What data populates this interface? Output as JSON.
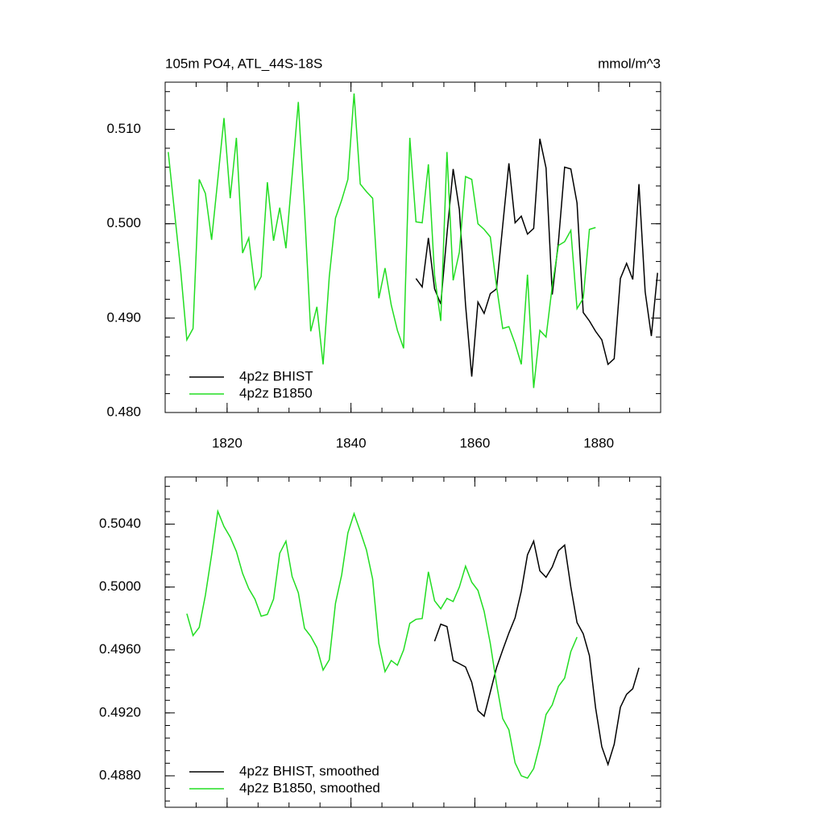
{
  "chart_data": [
    {
      "type": "line",
      "title": "105m PO4, ATL_44S-18S",
      "units": "mmol/m^3",
      "x": [
        1810.5,
        1811.5,
        1812.5,
        1813.5,
        1814.5,
        1815.5,
        1816.5,
        1817.5,
        1818.5,
        1819.5,
        1820.5,
        1821.5,
        1822.5,
        1823.5,
        1824.5,
        1825.5,
        1826.5,
        1827.5,
        1828.5,
        1829.5,
        1830.5,
        1831.5,
        1832.5,
        1833.5,
        1834.5,
        1835.5,
        1836.5,
        1837.5,
        1838.5,
        1839.5,
        1840.5,
        1841.5,
        1842.5,
        1843.5,
        1844.5,
        1845.5,
        1846.5,
        1847.5,
        1848.5,
        1849.5,
        1850.5,
        1851.5,
        1852.5,
        1853.5,
        1854.5,
        1855.5,
        1856.5,
        1857.5,
        1858.5,
        1859.5,
        1860.5,
        1861.5,
        1862.5,
        1863.5,
        1864.5,
        1865.5,
        1866.5,
        1867.5,
        1868.5,
        1869.5,
        1870.5,
        1871.5,
        1872.5,
        1873.5,
        1874.5,
        1875.5,
        1876.5,
        1877.5,
        1878.5,
        1879.5,
        1880.5,
        1881.5,
        1882.5,
        1883.5,
        1884.5,
        1885.5,
        1886.5,
        1887.5,
        1888.5,
        1889.5
      ],
      "series": [
        {
          "name": "4p2z BHIST",
          "color": "#000000",
          "values": [
            null,
            null,
            null,
            null,
            null,
            null,
            null,
            null,
            null,
            null,
            null,
            null,
            null,
            null,
            null,
            null,
            null,
            null,
            null,
            null,
            null,
            null,
            null,
            null,
            null,
            null,
            null,
            null,
            null,
            null,
            null,
            null,
            null,
            null,
            null,
            null,
            null,
            null,
            null,
            null,
            0.4942,
            0.4933,
            0.4985,
            0.4931,
            0.4915,
            0.4989,
            0.5058,
            0.5015,
            0.4914,
            0.4838,
            0.4917,
            0.4905,
            0.4926,
            0.4931,
            0.4998,
            0.5064,
            0.5001,
            0.5008,
            0.4989,
            0.4995,
            0.509,
            0.5059,
            0.4925,
            0.4981,
            0.506,
            0.5058,
            0.5022,
            0.4906,
            0.4897,
            0.4886,
            0.4877,
            0.4851,
            0.4857,
            0.4942,
            0.4958,
            0.4941,
            0.5042,
            0.4928,
            0.4881,
            0.4948
          ]
        },
        {
          "name": "4p2z B1850",
          "color": "#22dd22",
          "values": [
            0.5076,
            0.5013,
            0.4951,
            0.4877,
            0.4889,
            0.5047,
            0.5032,
            0.4983,
            0.5047,
            0.5112,
            0.5027,
            0.5091,
            0.4969,
            0.4985,
            0.4931,
            0.4944,
            0.5044,
            0.4982,
            0.5017,
            0.4974,
            0.5051,
            0.5129,
            0.5015,
            0.4886,
            0.4912,
            0.4851,
            0.4944,
            0.5006,
            0.5025,
            0.5047,
            0.5138,
            0.5042,
            0.5034,
            0.5027,
            0.4921,
            0.4953,
            0.4914,
            0.4887,
            0.4868,
            0.5091,
            0.5002,
            0.5001,
            0.5063,
            0.4945,
            0.4897,
            0.5076,
            0.494,
            0.497,
            0.505,
            0.5047,
            0.5,
            0.4994,
            0.4986,
            0.4934,
            0.4889,
            0.4891,
            0.4873,
            0.4851,
            0.4946,
            0.4826,
            0.4887,
            0.488,
            0.4934,
            0.4977,
            0.4981,
            0.4993,
            0.491,
            0.4921,
            0.4994,
            0.4996,
            null,
            null,
            null,
            null,
            null,
            null,
            null,
            null,
            null,
            null
          ]
        }
      ],
      "xlim": [
        1810,
        1890
      ],
      "xticks": [
        1820,
        1840,
        1860,
        1880
      ],
      "xtick_labels": true,
      "ylim": [
        0.48,
        0.515
      ],
      "yticks": [
        {
          "value": 0.48,
          "label": "0.480"
        },
        {
          "value": 0.49,
          "label": "0.490"
        },
        {
          "value": 0.5,
          "label": "0.500"
        },
        {
          "value": 0.51,
          "label": "0.510"
        }
      ],
      "xminor": 4,
      "yminor": 5,
      "legend": "lower left"
    },
    {
      "type": "line",
      "x": [
        1813.5,
        1814.5,
        1815.5,
        1816.5,
        1817.5,
        1818.5,
        1819.5,
        1820.5,
        1821.5,
        1822.5,
        1823.5,
        1824.5,
        1825.5,
        1826.5,
        1827.5,
        1828.5,
        1829.5,
        1830.5,
        1831.5,
        1832.5,
        1833.5,
        1834.5,
        1835.5,
        1836.5,
        1837.5,
        1838.5,
        1839.5,
        1840.5,
        1841.5,
        1842.5,
        1843.5,
        1844.5,
        1845.5,
        1846.5,
        1847.5,
        1848.5,
        1849.5,
        1850.5,
        1851.5,
        1852.5,
        1853.5,
        1854.5,
        1855.5,
        1856.5,
        1857.5,
        1858.5,
        1859.5,
        1860.5,
        1861.5,
        1862.5,
        1863.5,
        1864.5,
        1865.5,
        1866.5,
        1867.5,
        1868.5,
        1869.5,
        1870.5,
        1871.5,
        1872.5,
        1873.5,
        1874.5,
        1875.5,
        1876.5,
        1877.5,
        1878.5,
        1879.5,
        1880.5,
        1881.5,
        1882.5,
        1883.5,
        1884.5,
        1885.5,
        1886.5
      ],
      "series": [
        {
          "name": "4p2z BHIST, smoothed",
          "color": "#000000",
          "values": [
            null,
            null,
            null,
            null,
            null,
            null,
            null,
            null,
            null,
            null,
            null,
            null,
            null,
            null,
            null,
            null,
            null,
            null,
            null,
            null,
            null,
            null,
            null,
            null,
            null,
            null,
            null,
            null,
            null,
            null,
            null,
            null,
            null,
            null,
            null,
            null,
            null,
            null,
            null,
            null,
            0.49656,
            0.49764,
            0.49749,
            0.49533,
            0.49513,
            0.49492,
            0.49395,
            0.49215,
            0.49179,
            0.49333,
            0.49487,
            0.496,
            0.49708,
            0.49805,
            0.49974,
            0.50205,
            0.50292,
            0.50103,
            0.50062,
            0.50128,
            0.50231,
            0.50267,
            0.5,
            0.49774,
            0.49703,
            0.49564,
            0.49231,
            0.48985,
            0.48872,
            0.49,
            0.49236,
            0.49318,
            0.49354,
            0.49487
          ]
        },
        {
          "name": "4p2z B1850, smoothed",
          "color": "#22dd22",
          "values": [
            0.49831,
            0.49692,
            0.49744,
            0.49949,
            0.50205,
            0.50482,
            0.50385,
            0.50318,
            0.50226,
            0.50087,
            0.4999,
            0.49923,
            0.49815,
            0.49826,
            0.49923,
            0.50215,
            0.50292,
            0.50067,
            0.49964,
            0.49738,
            0.49687,
            0.49615,
            0.49472,
            0.49538,
            0.49897,
            0.50077,
            0.50344,
            0.50467,
            0.50354,
            0.50236,
            0.50051,
            0.49641,
            0.49462,
            0.49533,
            0.49503,
            0.496,
            0.49769,
            0.49795,
            0.498,
            0.50097,
            0.49913,
            0.49862,
            0.49928,
            0.49908,
            0.5,
            0.50133,
            0.50031,
            0.49979,
            0.49846,
            0.49641,
            0.49385,
            0.49164,
            0.49092,
            0.48882,
            0.488,
            0.48785,
            0.48846,
            0.49,
            0.4919,
            0.49251,
            0.49369,
            0.49421,
            0.4959,
            0.49682,
            null,
            null,
            null,
            null,
            null,
            null,
            null,
            null,
            null,
            null
          ]
        }
      ],
      "xlim": [
        1810,
        1890
      ],
      "xticks": [
        1820,
        1840,
        1860,
        1880
      ],
      "xtick_labels": false,
      "ylim": [
        0.486,
        0.507
      ],
      "yticks": [
        {
          "value": 0.488,
          "label": "0.4880"
        },
        {
          "value": 0.492,
          "label": "0.4920"
        },
        {
          "value": 0.496,
          "label": "0.4960"
        },
        {
          "value": 0.5,
          "label": "0.5000"
        },
        {
          "value": 0.504,
          "label": "0.5040"
        }
      ],
      "xminor": 4,
      "yminor": 5,
      "legend": "lower left"
    }
  ]
}
